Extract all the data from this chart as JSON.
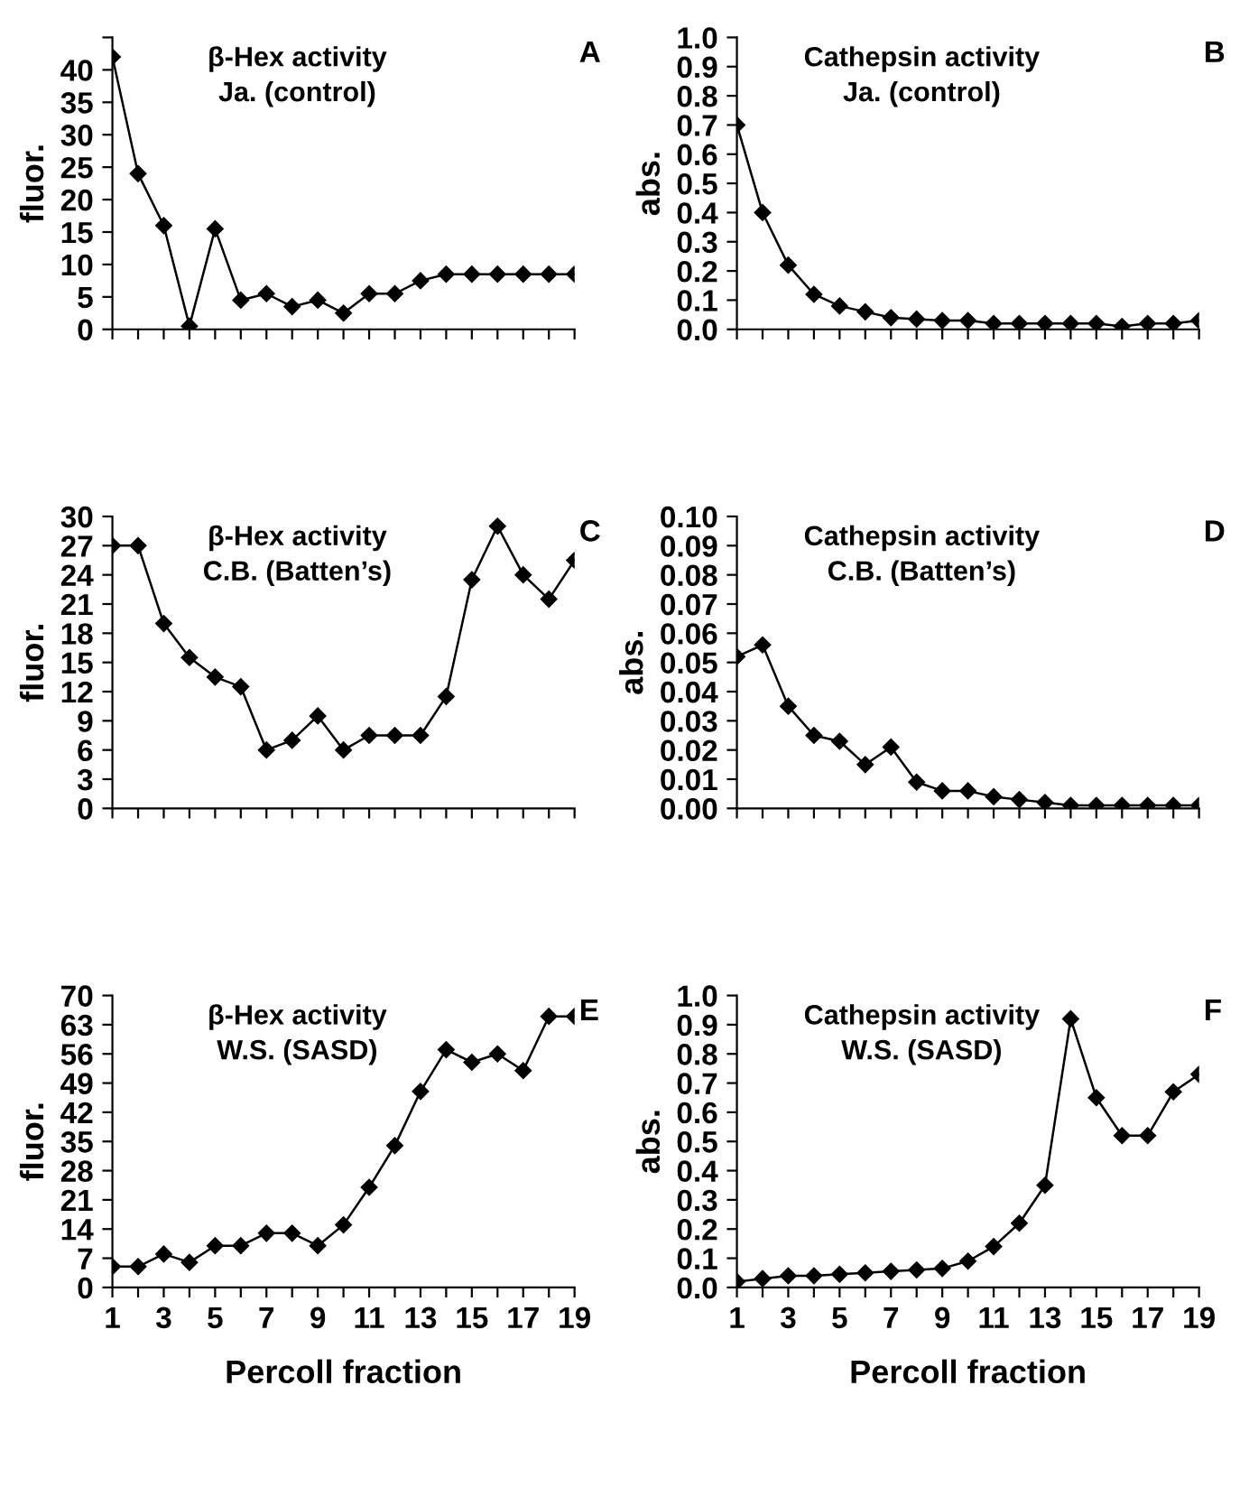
{
  "chart_data": [
    {
      "type": "line",
      "title": "β-Hex activity",
      "subtitle": "Ja. (control)",
      "ylabel": "fluor.",
      "annotations": [
        "A"
      ],
      "x": [
        1,
        2,
        3,
        4,
        5,
        6,
        7,
        8,
        9,
        10,
        11,
        12,
        13,
        14,
        15,
        16,
        17,
        18,
        19
      ],
      "xlim": [
        1,
        19
      ],
      "xticks": [
        {
          "value": 1,
          "label": null
        },
        {
          "value": 2,
          "label": null
        },
        {
          "value": 3,
          "label": null
        },
        {
          "value": 4,
          "label": null
        },
        {
          "value": 5,
          "label": null
        },
        {
          "value": 6,
          "label": null
        },
        {
          "value": 7,
          "label": null
        },
        {
          "value": 8,
          "label": null
        },
        {
          "value": 9,
          "label": null
        },
        {
          "value": 10,
          "label": null
        },
        {
          "value": 11,
          "label": null
        },
        {
          "value": 12,
          "label": null
        },
        {
          "value": 13,
          "label": null
        },
        {
          "value": 14,
          "label": null
        },
        {
          "value": 15,
          "label": null
        },
        {
          "value": 16,
          "label": null
        },
        {
          "value": 17,
          "label": null
        },
        {
          "value": 18,
          "label": null
        },
        {
          "value": 19,
          "label": null
        }
      ],
      "ylim": [
        0,
        45
      ],
      "yticks": [
        0,
        5,
        10,
        15,
        20,
        25,
        30,
        35,
        40,
        {
          "value": 45,
          "label": null
        }
      ],
      "tick_labels": "y",
      "grid": false,
      "legend": false,
      "marker": "diamond",
      "line_style": "solid",
      "series": [
        {
          "color": "#000000",
          "values": [
            42,
            24,
            16,
            0.5,
            15.5,
            4.5,
            5.5,
            3.5,
            4.5,
            2.5,
            5.5,
            5.5,
            7.5,
            8.5,
            8.5,
            8.5,
            8.5,
            8.5,
            8.5
          ]
        }
      ]
    },
    {
      "type": "line",
      "title": "Cathepsin activity",
      "subtitle": "Ja. (control)",
      "ylabel": "abs.",
      "annotations": [
        "B"
      ],
      "x": [
        1,
        2,
        3,
        4,
        5,
        6,
        7,
        8,
        9,
        10,
        11,
        12,
        13,
        14,
        15,
        16,
        17,
        18,
        19
      ],
      "xlim": [
        1,
        19
      ],
      "xticks": [
        {
          "value": 1,
          "label": null
        },
        {
          "value": 2,
          "label": null
        },
        {
          "value": 3,
          "label": null
        },
        {
          "value": 4,
          "label": null
        },
        {
          "value": 5,
          "label": null
        },
        {
          "value": 6,
          "label": null
        },
        {
          "value": 7,
          "label": null
        },
        {
          "value": 8,
          "label": null
        },
        {
          "value": 9,
          "label": null
        },
        {
          "value": 10,
          "label": null
        },
        {
          "value": 11,
          "label": null
        },
        {
          "value": 12,
          "label": null
        },
        {
          "value": 13,
          "label": null
        },
        {
          "value": 14,
          "label": null
        },
        {
          "value": 15,
          "label": null
        },
        {
          "value": 16,
          "label": null
        },
        {
          "value": 17,
          "label": null
        },
        {
          "value": 18,
          "label": null
        },
        {
          "value": 19,
          "label": null
        }
      ],
      "ylim": [
        0,
        1
      ],
      "yticks": [
        {
          "value": 0,
          "label": "0.0"
        },
        0.1,
        0.2,
        0.3,
        0.4,
        0.5,
        0.6,
        0.7,
        0.8,
        0.9,
        {
          "value": 1,
          "label": "1.0"
        }
      ],
      "tick_labels": "y",
      "grid": false,
      "legend": false,
      "marker": "diamond",
      "line_style": "solid",
      "series": [
        {
          "color": "#000000",
          "values": [
            0.7,
            0.4,
            0.22,
            0.12,
            0.08,
            0.06,
            0.04,
            0.035,
            0.03,
            0.03,
            0.02,
            0.02,
            0.02,
            0.02,
            0.02,
            0.01,
            0.02,
            0.02,
            0.03
          ]
        }
      ]
    },
    {
      "type": "line",
      "title": "β-Hex activity",
      "subtitle": "C.B. (Batten’s)",
      "ylabel": "fluor.",
      "annotations": [
        "C"
      ],
      "x": [
        1,
        2,
        3,
        4,
        5,
        6,
        7,
        8,
        9,
        10,
        11,
        12,
        13,
        14,
        15,
        16,
        17,
        18,
        19
      ],
      "xlim": [
        1,
        19
      ],
      "xticks": [
        {
          "value": 1,
          "label": null
        },
        {
          "value": 2,
          "label": null
        },
        {
          "value": 3,
          "label": null
        },
        {
          "value": 4,
          "label": null
        },
        {
          "value": 5,
          "label": null
        },
        {
          "value": 6,
          "label": null
        },
        {
          "value": 7,
          "label": null
        },
        {
          "value": 8,
          "label": null
        },
        {
          "value": 9,
          "label": null
        },
        {
          "value": 10,
          "label": null
        },
        {
          "value": 11,
          "label": null
        },
        {
          "value": 12,
          "label": null
        },
        {
          "value": 13,
          "label": null
        },
        {
          "value": 14,
          "label": null
        },
        {
          "value": 15,
          "label": null
        },
        {
          "value": 16,
          "label": null
        },
        {
          "value": 17,
          "label": null
        },
        {
          "value": 18,
          "label": null
        },
        {
          "value": 19,
          "label": null
        }
      ],
      "ylim": [
        0,
        30
      ],
      "yticks": [
        0,
        3,
        6,
        9,
        12,
        15,
        18,
        21,
        24,
        27,
        30
      ],
      "tick_labels": "y",
      "grid": false,
      "legend": false,
      "marker": "diamond",
      "line_style": "solid",
      "series": [
        {
          "color": "#000000",
          "values": [
            27,
            27,
            19,
            15.5,
            13.5,
            12.5,
            6,
            7,
            9.5,
            6,
            7.5,
            7.5,
            7.5,
            11.5,
            23.5,
            29,
            24,
            21.5,
            25.5
          ]
        }
      ]
    },
    {
      "type": "line",
      "title": "Cathepsin activity",
      "subtitle": "C.B. (Batten’s)",
      "ylabel": "abs.",
      "annotations": [
        "D"
      ],
      "x": [
        1,
        2,
        3,
        4,
        5,
        6,
        7,
        8,
        9,
        10,
        11,
        12,
        13,
        14,
        15,
        16,
        17,
        18,
        19
      ],
      "xlim": [
        1,
        19
      ],
      "xticks": [
        {
          "value": 1,
          "label": null
        },
        {
          "value": 2,
          "label": null
        },
        {
          "value": 3,
          "label": null
        },
        {
          "value": 4,
          "label": null
        },
        {
          "value": 5,
          "label": null
        },
        {
          "value": 6,
          "label": null
        },
        {
          "value": 7,
          "label": null
        },
        {
          "value": 8,
          "label": null
        },
        {
          "value": 9,
          "label": null
        },
        {
          "value": 10,
          "label": null
        },
        {
          "value": 11,
          "label": null
        },
        {
          "value": 12,
          "label": null
        },
        {
          "value": 13,
          "label": null
        },
        {
          "value": 14,
          "label": null
        },
        {
          "value": 15,
          "label": null
        },
        {
          "value": 16,
          "label": null
        },
        {
          "value": 17,
          "label": null
        },
        {
          "value": 18,
          "label": null
        },
        {
          "value": 19,
          "label": null
        }
      ],
      "ylim": [
        0,
        0.1
      ],
      "yticks": [
        {
          "value": 0,
          "label": "0.00"
        },
        {
          "value": 0.01,
          "label": "0.01"
        },
        {
          "value": 0.02,
          "label": "0.02"
        },
        {
          "value": 0.03,
          "label": "0.03"
        },
        {
          "value": 0.04,
          "label": "0.04"
        },
        {
          "value": 0.05,
          "label": "0.05"
        },
        {
          "value": 0.06,
          "label": "0.06"
        },
        {
          "value": 0.07,
          "label": "0.07"
        },
        {
          "value": 0.08,
          "label": "0.08"
        },
        {
          "value": 0.09,
          "label": "0.09"
        },
        {
          "value": 0.1,
          "label": "0.10"
        }
      ],
      "tick_labels": "y",
      "grid": false,
      "legend": false,
      "marker": "diamond",
      "line_style": "solid",
      "series": [
        {
          "color": "#000000",
          "values": [
            0.052,
            0.056,
            0.035,
            0.025,
            0.023,
            0.015,
            0.021,
            0.009,
            0.006,
            0.006,
            0.004,
            0.003,
            0.002,
            0.001,
            0.001,
            0.001,
            0.001,
            0.001,
            0.001
          ]
        }
      ]
    },
    {
      "type": "line",
      "title": "β-Hex activity",
      "subtitle": "W.S. (SASD)",
      "ylabel": "fluor.",
      "xlabel": "Percoll fraction",
      "annotations": [
        "E"
      ],
      "x": [
        1,
        2,
        3,
        4,
        5,
        6,
        7,
        8,
        9,
        10,
        11,
        12,
        13,
        14,
        15,
        16,
        17,
        18,
        19
      ],
      "xlim": [
        1,
        19
      ],
      "xticks": [
        1,
        {
          "value": 2,
          "label": null
        },
        3,
        {
          "value": 4,
          "label": null
        },
        5,
        {
          "value": 6,
          "label": null
        },
        7,
        {
          "value": 8,
          "label": null
        },
        9,
        {
          "value": 10,
          "label": null
        },
        11,
        {
          "value": 12,
          "label": null
        },
        13,
        {
          "value": 14,
          "label": null
        },
        15,
        {
          "value": 16,
          "label": null
        },
        17,
        {
          "value": 18,
          "label": null
        },
        19
      ],
      "ylim": [
        0,
        70
      ],
      "yticks": [
        0,
        7,
        14,
        21,
        28,
        35,
        42,
        49,
        56,
        63,
        70
      ],
      "grid": false,
      "legend": false,
      "marker": "diamond",
      "line_style": "solid",
      "series": [
        {
          "color": "#000000",
          "values": [
            5,
            5,
            8,
            6,
            10,
            10,
            13,
            13,
            10,
            15,
            24,
            34,
            47,
            57,
            54,
            56,
            52,
            65,
            65
          ]
        }
      ]
    },
    {
      "type": "line",
      "title": "Cathepsin activity",
      "subtitle": "W.S. (SASD)",
      "ylabel": "abs.",
      "xlabel": "Percoll fraction",
      "annotations": [
        "F"
      ],
      "x": [
        1,
        2,
        3,
        4,
        5,
        6,
        7,
        8,
        9,
        10,
        11,
        12,
        13,
        14,
        15,
        16,
        17,
        18,
        19
      ],
      "xlim": [
        1,
        19
      ],
      "xticks": [
        1,
        {
          "value": 2,
          "label": null
        },
        3,
        {
          "value": 4,
          "label": null
        },
        5,
        {
          "value": 6,
          "label": null
        },
        7,
        {
          "value": 8,
          "label": null
        },
        9,
        {
          "value": 10,
          "label": null
        },
        11,
        {
          "value": 12,
          "label": null
        },
        13,
        {
          "value": 14,
          "label": null
        },
        15,
        {
          "value": 16,
          "label": null
        },
        17,
        {
          "value": 18,
          "label": null
        },
        19
      ],
      "ylim": [
        0,
        1
      ],
      "yticks": [
        {
          "value": 0,
          "label": "0.0"
        },
        0.1,
        0.2,
        0.3,
        0.4,
        0.5,
        0.6,
        0.7,
        0.8,
        0.9,
        {
          "value": 1,
          "label": "1.0"
        }
      ],
      "grid": false,
      "legend": false,
      "marker": "diamond",
      "line_style": "solid",
      "series": [
        {
          "color": "#000000",
          "values": [
            0.02,
            0.03,
            0.04,
            0.04,
            0.045,
            0.05,
            0.055,
            0.06,
            0.065,
            0.09,
            0.14,
            0.22,
            0.35,
            0.92,
            0.65,
            0.52,
            0.52,
            0.67,
            0.73
          ]
        }
      ]
    }
  ]
}
